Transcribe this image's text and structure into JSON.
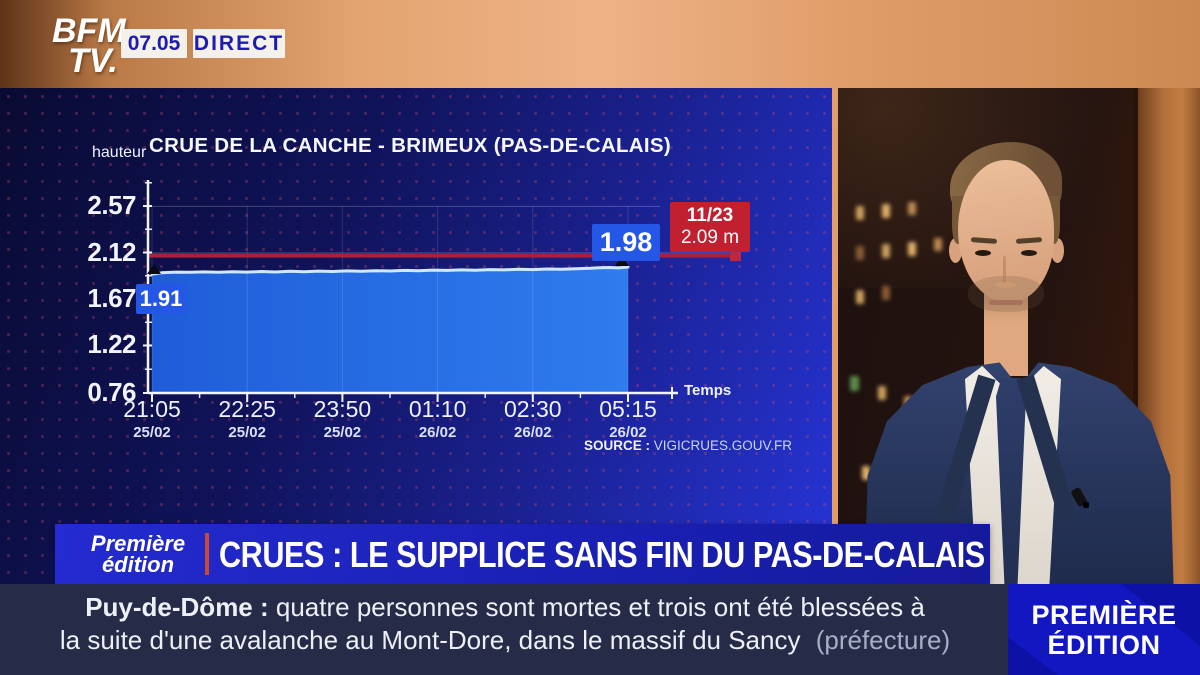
{
  "header": {
    "logo_line1": "BFM",
    "logo_line2": "TV.",
    "time": "07.05",
    "live_label": "DIRECT"
  },
  "chart_data": {
    "type": "area",
    "title": "CRUE DE LA CANCHE - BRIMEUX (PAS-DE-CALAIS)",
    "ylabel": "hauteur",
    "xlabel": "Temps",
    "ylim": [
      0.76,
      2.85
    ],
    "grid": true,
    "legend": false,
    "y_ticks": [
      2.57,
      2.12,
      1.67,
      1.22,
      0.76
    ],
    "y_tick_labels": [
      "2.57",
      "2.12",
      "1.67",
      "1.22",
      "0.76"
    ],
    "x_ticks": [
      {
        "time": "21:05",
        "date": "25/02"
      },
      {
        "time": "22:25",
        "date": "25/02"
      },
      {
        "time": "23:50",
        "date": "25/02"
      },
      {
        "time": "01:10",
        "date": "26/02"
      },
      {
        "time": "02:30",
        "date": "26/02"
      },
      {
        "time": "05:15",
        "date": "26/02"
      }
    ],
    "series": [
      {
        "name": "hauteur de la Canche (m)",
        "fill_color": "#2467e4",
        "line_color": "#cfe9fb",
        "points_xy": [
          [
            0.0,
            1.91
          ],
          [
            0.02,
            1.924
          ],
          [
            0.05,
            1.93
          ],
          [
            0.08,
            1.928
          ],
          [
            0.11,
            1.932
          ],
          [
            0.14,
            1.929
          ],
          [
            0.17,
            1.934
          ],
          [
            0.2,
            1.93
          ],
          [
            0.23,
            1.936
          ],
          [
            0.26,
            1.931
          ],
          [
            0.29,
            1.938
          ],
          [
            0.32,
            1.934
          ],
          [
            0.35,
            1.94
          ],
          [
            0.38,
            1.936
          ],
          [
            0.41,
            1.942
          ],
          [
            0.44,
            1.939
          ],
          [
            0.47,
            1.944
          ],
          [
            0.5,
            1.941
          ],
          [
            0.53,
            1.947
          ],
          [
            0.56,
            1.944
          ],
          [
            0.59,
            1.95
          ],
          [
            0.62,
            1.947
          ],
          [
            0.65,
            1.952
          ],
          [
            0.68,
            1.949
          ],
          [
            0.71,
            1.955
          ],
          [
            0.74,
            1.952
          ],
          [
            0.77,
            1.958
          ],
          [
            0.8,
            1.955
          ],
          [
            0.83,
            1.96
          ],
          [
            0.86,
            1.958
          ],
          [
            0.89,
            1.963
          ],
          [
            0.92,
            1.967
          ],
          [
            0.94,
            1.972
          ],
          [
            0.96,
            1.975
          ],
          [
            0.98,
            1.971
          ],
          [
            1.0,
            1.98
          ]
        ]
      }
    ],
    "threshold": {
      "date": "11/23",
      "value": 2.09,
      "label": "2.09 m",
      "color": "#c0202f"
    },
    "annotations": {
      "start": {
        "label": "1.91",
        "value": 1.91
      },
      "end": {
        "label": "1.98",
        "value": 1.98
      }
    },
    "source_prefix": "SOURCE :",
    "source": "VIGICRUES.GOUV.FR"
  },
  "banner": {
    "show_line1": "Première",
    "show_line2": "édition",
    "headline": "CRUES : LE SUPPLICE SANS FIN DU PAS-DE-CALAIS"
  },
  "ticker": {
    "topic": "Puy-de-Dôme :",
    "line1": "quatre personnes sont mortes et trois ont été blessées à",
    "line2": "la suite d'une avalanche au Mont-Dore, dans le massif du Sancy",
    "attribution": "(préfecture)"
  },
  "badge": {
    "line1": "PREMIÈRE",
    "line2": "ÉDITION"
  },
  "colors": {
    "brand_blue": "#1d1bb0",
    "alert_red": "#c0202f",
    "alert_line": "#a8203a",
    "box_blue": "#2457e6",
    "ticker_navy": "#262b47",
    "badge_blue": "#1217c2",
    "badge_dark": "#0d10a0",
    "sep_red": "#c84a35",
    "chart_fill": "#2467e4",
    "chart_line": "#cfe9fb"
  }
}
